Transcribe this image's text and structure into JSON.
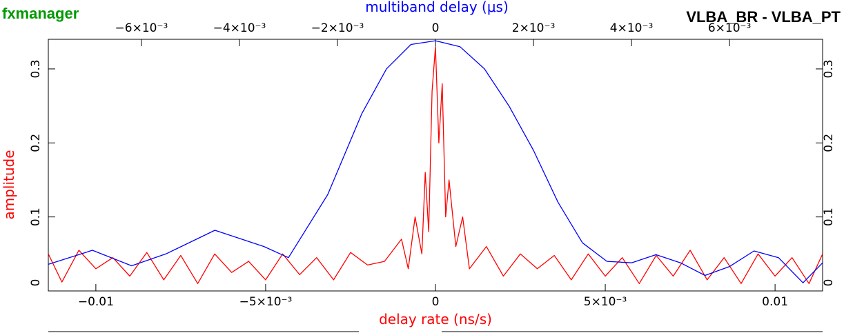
{
  "header": {
    "app_name": "fxmanager",
    "baseline": "VLBA_BR - VLBA_PT",
    "app_color": "#009900"
  },
  "chart_data": {
    "type": "line",
    "title": "",
    "x_bottom": {
      "label": "delay rate (ns/s)",
      "color": "#ff0000",
      "range": [
        -0.0114,
        0.0114
      ],
      "ticks": [
        -0.01,
        -0.005,
        0,
        0.005,
        0.01
      ],
      "tick_labels": [
        "−0.01",
        "−5×10⁻³",
        "0",
        "5×10⁻³",
        "0.01"
      ]
    },
    "x_top": {
      "label": "multiband delay (μs)",
      "color": "#0000ff",
      "range": [
        -0.0079,
        0.0079
      ],
      "ticks": [
        -0.006,
        -0.004,
        -0.002,
        0,
        0.002,
        0.004,
        0.006
      ],
      "tick_labels": [
        "−6×10⁻³",
        "−4×10⁻³",
        "−2×10⁻³",
        "0",
        "2×10⁻³",
        "4×10⁻³",
        "6×10⁻³"
      ]
    },
    "y": {
      "label": "amplitude",
      "color": "#ff0000",
      "range": [
        0,
        0.34
      ],
      "ticks": [
        0,
        0.1,
        0.2,
        0.3
      ],
      "tick_labels": [
        "0",
        "0.1",
        "0.2",
        "0.3"
      ]
    },
    "grid": false,
    "legend": "none",
    "series": [
      {
        "axis": "top",
        "color": "#0000ff",
        "x": [
          -0.0079,
          -0.007,
          -0.0062,
          -0.0055,
          -0.0045,
          -0.0035,
          -0.003,
          -0.0022,
          -0.0015,
          -0.001,
          -0.0005,
          0,
          0.0005,
          0.001,
          0.0015,
          0.002,
          0.0025,
          0.003,
          0.0035,
          0.004,
          0.0045,
          0.005,
          0.0055,
          0.006,
          0.0065,
          0.007,
          0.0075,
          0.0079
        ],
        "y": [
          0.036,
          0.055,
          0.034,
          0.05,
          0.082,
          0.06,
          0.045,
          0.13,
          0.24,
          0.3,
          0.333,
          0.338,
          0.33,
          0.3,
          0.25,
          0.19,
          0.12,
          0.065,
          0.04,
          0.038,
          0.049,
          0.038,
          0.021,
          0.033,
          0.054,
          0.045,
          0.011,
          0.038
        ]
      },
      {
        "axis": "bottom",
        "color": "#ff0000",
        "x": [
          -0.0114,
          -0.011,
          -0.0105,
          -0.01,
          -0.0095,
          -0.009,
          -0.0085,
          -0.008,
          -0.0075,
          -0.007,
          -0.0065,
          -0.006,
          -0.0055,
          -0.005,
          -0.0045,
          -0.004,
          -0.0035,
          -0.003,
          -0.0025,
          -0.002,
          -0.0015,
          -0.001,
          -0.0008,
          -0.0006,
          -0.0004,
          -0.0003,
          -0.0002,
          -0.0001,
          0,
          0.0001,
          0.0002,
          0.0003,
          0.0004,
          0.0006,
          0.0008,
          0.001,
          0.0015,
          0.002,
          0.0025,
          0.003,
          0.0035,
          0.004,
          0.0045,
          0.005,
          0.0055,
          0.006,
          0.0065,
          0.007,
          0.0075,
          0.008,
          0.0085,
          0.009,
          0.0095,
          0.01,
          0.0105,
          0.011,
          0.0114
        ],
        "y": [
          0.05,
          0.012,
          0.055,
          0.03,
          0.045,
          0.02,
          0.052,
          0.015,
          0.048,
          0.01,
          0.05,
          0.025,
          0.04,
          0.015,
          0.05,
          0.022,
          0.045,
          0.015,
          0.052,
          0.035,
          0.04,
          0.07,
          0.03,
          0.1,
          0.05,
          0.16,
          0.08,
          0.27,
          0.33,
          0.2,
          0.28,
          0.1,
          0.15,
          0.06,
          0.1,
          0.03,
          0.06,
          0.02,
          0.05,
          0.03,
          0.048,
          0.015,
          0.05,
          0.02,
          0.045,
          0.01,
          0.048,
          0.02,
          0.055,
          0.015,
          0.045,
          0.01,
          0.05,
          0.02,
          0.045,
          0.01,
          0.05
        ]
      }
    ]
  }
}
